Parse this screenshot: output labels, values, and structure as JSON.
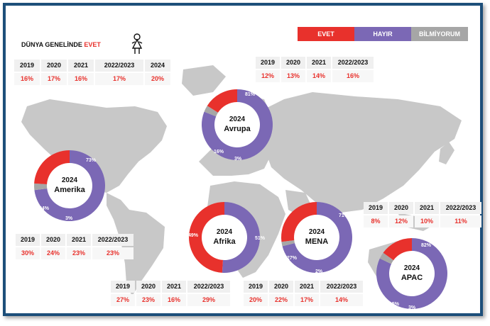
{
  "header": {
    "title_prefix": "DÜNYA GENELİNDE",
    "title_highlight": "EVET",
    "person_icon": "female-person-icon"
  },
  "legend": [
    {
      "label": "EVET",
      "color": "#e8312c"
    },
    {
      "label": "HAYIR",
      "color": "#7b68b5"
    },
    {
      "label": "BİLMİYORUM",
      "color": "#a6a6a6"
    }
  ],
  "chart_data": [
    {
      "type": "table",
      "title": "DÜNYA GENELİNDE EVET",
      "columns": [
        "2019",
        "2020",
        "2021",
        "2022/2023",
        "2024"
      ],
      "values": [
        "16%",
        "17%",
        "16%",
        "17%",
        "20%"
      ]
    },
    {
      "type": "pie",
      "year": "2024",
      "region": "Avrupa",
      "labels": [
        "EVET",
        "HAYIR",
        "BİLMİYORUM"
      ],
      "values": [
        16,
        81,
        3
      ],
      "value_labels": [
        "16%",
        "81%",
        "3%"
      ],
      "history": {
        "columns": [
          "2019",
          "2020",
          "2021",
          "2022/2023"
        ],
        "values": [
          "12%",
          "13%",
          "14%",
          "16%"
        ]
      }
    },
    {
      "type": "pie",
      "year": "2024",
      "region": "Amerika",
      "labels": [
        "EVET",
        "HAYIR",
        "BİLMİYORUM"
      ],
      "values": [
        24,
        73,
        3
      ],
      "value_labels": [
        "24%",
        "73%",
        "3%"
      ],
      "history": {
        "columns": [
          "2019",
          "2020",
          "2021",
          "2022/2023"
        ],
        "values": [
          "30%",
          "24%",
          "23%",
          "23%"
        ]
      }
    },
    {
      "type": "pie",
      "year": "2024",
      "region": "Afrika",
      "labels": [
        "EVET",
        "HAYIR",
        "BİLMİYORUM"
      ],
      "values": [
        49,
        51,
        0
      ],
      "value_labels": [
        "49%",
        "51%",
        ""
      ],
      "history": {
        "columns": [
          "2019",
          "2020",
          "2021",
          "2022/2023"
        ],
        "values": [
          "27%",
          "23%",
          "16%",
          "29%"
        ]
      }
    },
    {
      "type": "pie",
      "year": "2024",
      "region": "MENA",
      "labels": [
        "EVET",
        "HAYIR",
        "BİLMİYORUM"
      ],
      "values": [
        27,
        71,
        2
      ],
      "value_labels": [
        "27%",
        "71%",
        "2%"
      ],
      "history": {
        "columns": [
          "2019",
          "2020",
          "2021",
          "2022/2023"
        ],
        "values": [
          "20%",
          "22%",
          "17%",
          "14%"
        ]
      }
    },
    {
      "type": "pie",
      "year": "2024",
      "region": "APAC",
      "labels": [
        "EVET",
        "HAYIR",
        "BİLMİYORUM"
      ],
      "values": [
        15,
        82,
        3
      ],
      "value_labels": [
        "15%",
        "82%",
        "3%"
      ],
      "history": {
        "columns": [
          "2019",
          "2020",
          "2021",
          "2022/2023"
        ],
        "values": [
          "8%",
          "12%",
          "10%",
          "11%"
        ]
      }
    }
  ]
}
